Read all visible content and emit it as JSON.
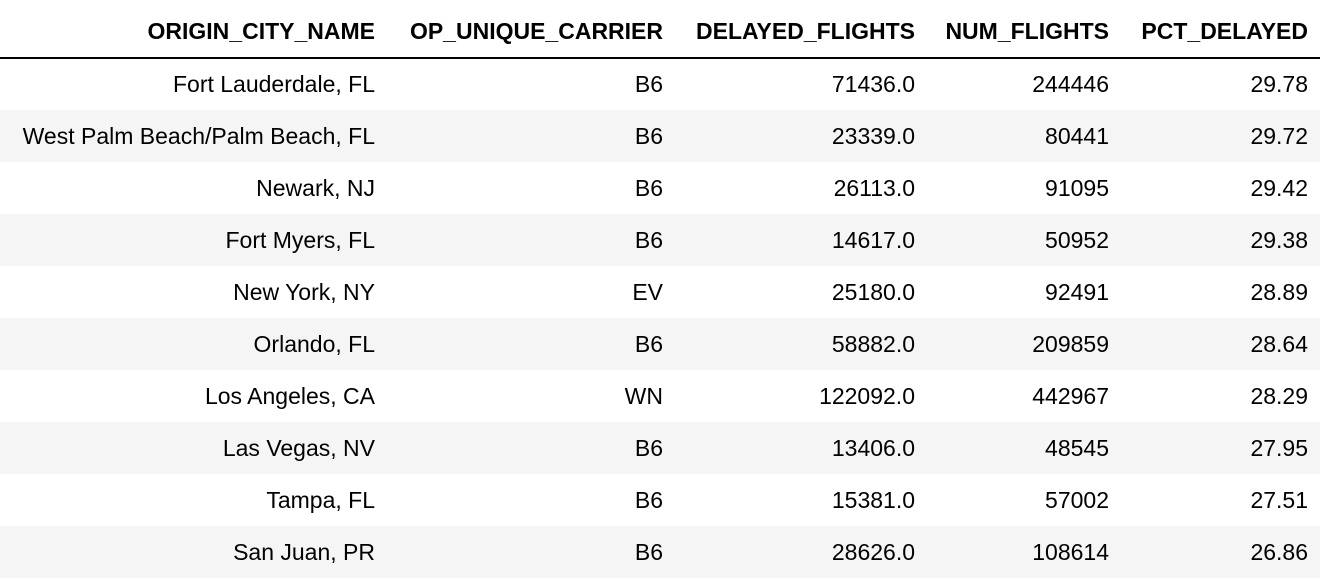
{
  "table": {
    "columns": [
      "ORIGIN_CITY_NAME",
      "OP_UNIQUE_CARRIER",
      "DELAYED_FLIGHTS",
      "NUM_FLIGHTS",
      "PCT_DELAYED"
    ],
    "rows": [
      [
        "Fort Lauderdale, FL",
        "B6",
        "71436.0",
        "244446",
        "29.78"
      ],
      [
        "West Palm Beach/Palm Beach, FL",
        "B6",
        "23339.0",
        "80441",
        "29.72"
      ],
      [
        "Newark, NJ",
        "B6",
        "26113.0",
        "91095",
        "29.42"
      ],
      [
        "Fort Myers, FL",
        "B6",
        "14617.0",
        "50952",
        "29.38"
      ],
      [
        "New York, NY",
        "EV",
        "25180.0",
        "92491",
        "28.89"
      ],
      [
        "Orlando, FL",
        "B6",
        "58882.0",
        "209859",
        "28.64"
      ],
      [
        "Los Angeles, CA",
        "WN",
        "122092.0",
        "442967",
        "28.29"
      ],
      [
        "Las Vegas, NV",
        "B6",
        "13406.0",
        "48545",
        "27.95"
      ],
      [
        "Tampa, FL",
        "B6",
        "15381.0",
        "57002",
        "27.51"
      ],
      [
        "San Juan, PR",
        "B6",
        "28626.0",
        "108614",
        "26.86"
      ]
    ]
  },
  "colors": {
    "stripe": "#f5f5f5",
    "header_rule": "#000000",
    "text": "#000000"
  }
}
